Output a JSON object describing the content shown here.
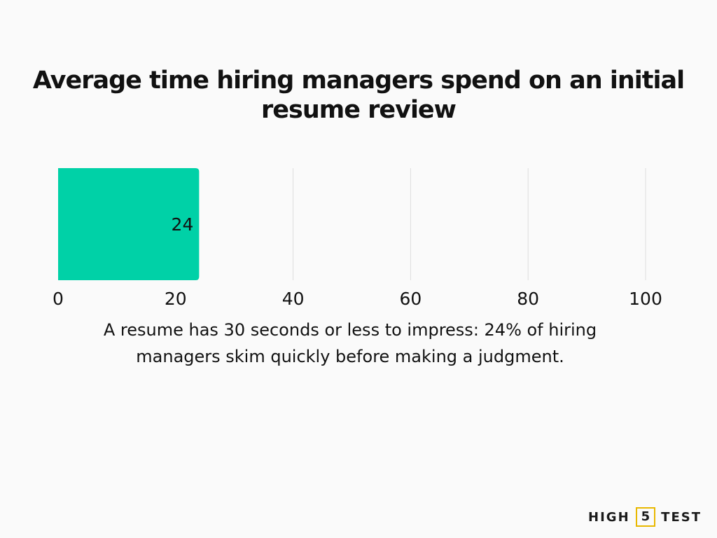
{
  "chart_data": {
    "type": "bar",
    "orientation": "horizontal",
    "title": "Average time hiring managers spend on an initial resume review",
    "values": [
      24
    ],
    "data_labels": [
      "24"
    ],
    "xlim": [
      0,
      100
    ],
    "x_ticks": [
      "0",
      "20",
      "40",
      "60",
      "80",
      "100"
    ],
    "grid": true,
    "bar_color": "#00d1a7",
    "grid_color": "#dddddd"
  },
  "caption": "A resume has 30 seconds or less to impress: 24% of hiring managers skim quickly before making a judgment.",
  "brand": {
    "left": "HIGH",
    "box": "5",
    "right": "TEST",
    "box_color": "#e8b800"
  }
}
